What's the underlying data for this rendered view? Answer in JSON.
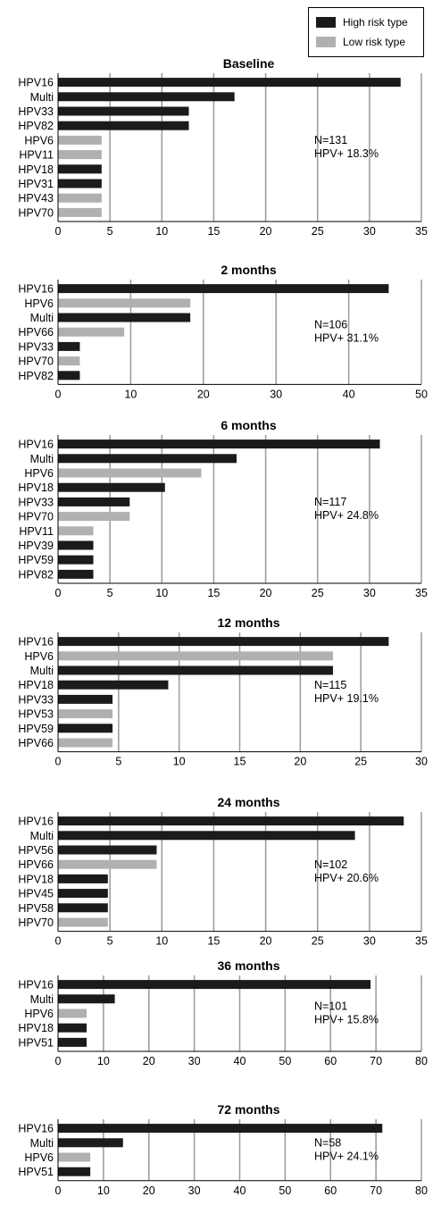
{
  "legend": {
    "high_label": "High risk type",
    "low_label": "Low risk type",
    "high_color": "#1b1b1b",
    "low_color": "#b0b0b0"
  },
  "colors": {
    "grid": "#9a9a9a",
    "axis": "#000000"
  },
  "chart_data": [
    {
      "type": "bar",
      "orientation": "horizontal",
      "title": "Baseline",
      "categories": [
        "HPV16",
        "Multi",
        "HPV33",
        "HPV82",
        "HPV6",
        "HPV11",
        "HPV18",
        "HPV31",
        "HPV43",
        "HPV70"
      ],
      "values": [
        33,
        17,
        12.6,
        12.6,
        4.2,
        4.2,
        4.2,
        4.2,
        4.2,
        4.2
      ],
      "risk": [
        "high",
        "high",
        "high",
        "high",
        "low",
        "low",
        "high",
        "high",
        "low",
        "low"
      ],
      "xlim": [
        0,
        35
      ],
      "xticks": [
        0,
        5,
        10,
        15,
        20,
        25,
        30,
        35
      ],
      "annotation": [
        "N=131",
        "HPV+ 18.3%"
      ]
    },
    {
      "type": "bar",
      "orientation": "horizontal",
      "title": "2 months",
      "categories": [
        "HPV16",
        "HPV6",
        "Multi",
        "HPV66",
        "HPV33",
        "HPV70",
        "HPV82"
      ],
      "values": [
        45.5,
        18.2,
        18.2,
        9.1,
        3,
        3,
        3
      ],
      "risk": [
        "high",
        "low",
        "high",
        "low",
        "high",
        "low",
        "high"
      ],
      "xlim": [
        0,
        50
      ],
      "xticks": [
        0,
        10,
        20,
        30,
        40,
        50
      ],
      "annotation": [
        "N=106",
        "HPV+ 31.1%"
      ]
    },
    {
      "type": "bar",
      "orientation": "horizontal",
      "title": "6 months",
      "categories": [
        "HPV16",
        "Multi",
        "HPV6",
        "HPV18",
        "HPV33",
        "HPV70",
        "HPV11",
        "HPV39",
        "HPV59",
        "HPV82"
      ],
      "values": [
        31,
        17.2,
        13.8,
        10.3,
        6.9,
        6.9,
        3.4,
        3.4,
        3.4,
        3.4
      ],
      "risk": [
        "high",
        "high",
        "low",
        "high",
        "high",
        "low",
        "low",
        "high",
        "high",
        "high"
      ],
      "xlim": [
        0,
        35
      ],
      "xticks": [
        0,
        5,
        10,
        15,
        20,
        25,
        30,
        35
      ],
      "annotation": [
        "N=117",
        "HPV+ 24.8%"
      ]
    },
    {
      "type": "bar",
      "orientation": "horizontal",
      "title": "12 months",
      "categories": [
        "HPV16",
        "HPV6",
        "Multi",
        "HPV18",
        "HPV33",
        "HPV53",
        "HPV59",
        "HPV66"
      ],
      "values": [
        27.3,
        22.7,
        22.7,
        9.1,
        4.5,
        4.5,
        4.5,
        4.5
      ],
      "risk": [
        "high",
        "low",
        "high",
        "high",
        "high",
        "low",
        "high",
        "low"
      ],
      "xlim": [
        0,
        30
      ],
      "xticks": [
        0,
        5,
        10,
        15,
        20,
        25,
        30
      ],
      "annotation": [
        "N=115",
        "HPV+ 19.1%"
      ]
    },
    {
      "type": "bar",
      "orientation": "horizontal",
      "title": "24 months",
      "categories": [
        "HPV16",
        "Multi",
        "HPV56",
        "HPV66",
        "HPV18",
        "HPV45",
        "HPV58",
        "HPV70"
      ],
      "values": [
        33.3,
        28.6,
        9.5,
        9.5,
        4.8,
        4.8,
        4.8,
        4.8
      ],
      "risk": [
        "high",
        "high",
        "high",
        "low",
        "high",
        "high",
        "high",
        "low"
      ],
      "xlim": [
        0,
        35
      ],
      "xticks": [
        0,
        5,
        10,
        15,
        20,
        25,
        30,
        35
      ],
      "annotation": [
        "N=102",
        "HPV+ 20.6%"
      ]
    },
    {
      "type": "bar",
      "orientation": "horizontal",
      "title": "36 months",
      "categories": [
        "HPV16",
        "Multi",
        "HPV6",
        "HPV18",
        "HPV51"
      ],
      "values": [
        68.8,
        12.5,
        6.3,
        6.3,
        6.3
      ],
      "risk": [
        "high",
        "high",
        "low",
        "high",
        "high"
      ],
      "xlim": [
        0,
        80
      ],
      "xticks": [
        0,
        10,
        20,
        30,
        40,
        50,
        60,
        70,
        80
      ],
      "annotation": [
        "N=101",
        "HPV+ 15.8%"
      ]
    },
    {
      "type": "bar",
      "orientation": "horizontal",
      "title": "72 months",
      "categories": [
        "HPV16",
        "Multi",
        "HPV6",
        "HPV51"
      ],
      "values": [
        71.4,
        14.3,
        7.1,
        7.1
      ],
      "risk": [
        "high",
        "high",
        "low",
        "high"
      ],
      "xlim": [
        0,
        80
      ],
      "xticks": [
        0,
        10,
        20,
        30,
        40,
        50,
        60,
        70,
        80
      ],
      "annotation": [
        "N=58",
        "HPV+ 24.1%"
      ]
    }
  ]
}
